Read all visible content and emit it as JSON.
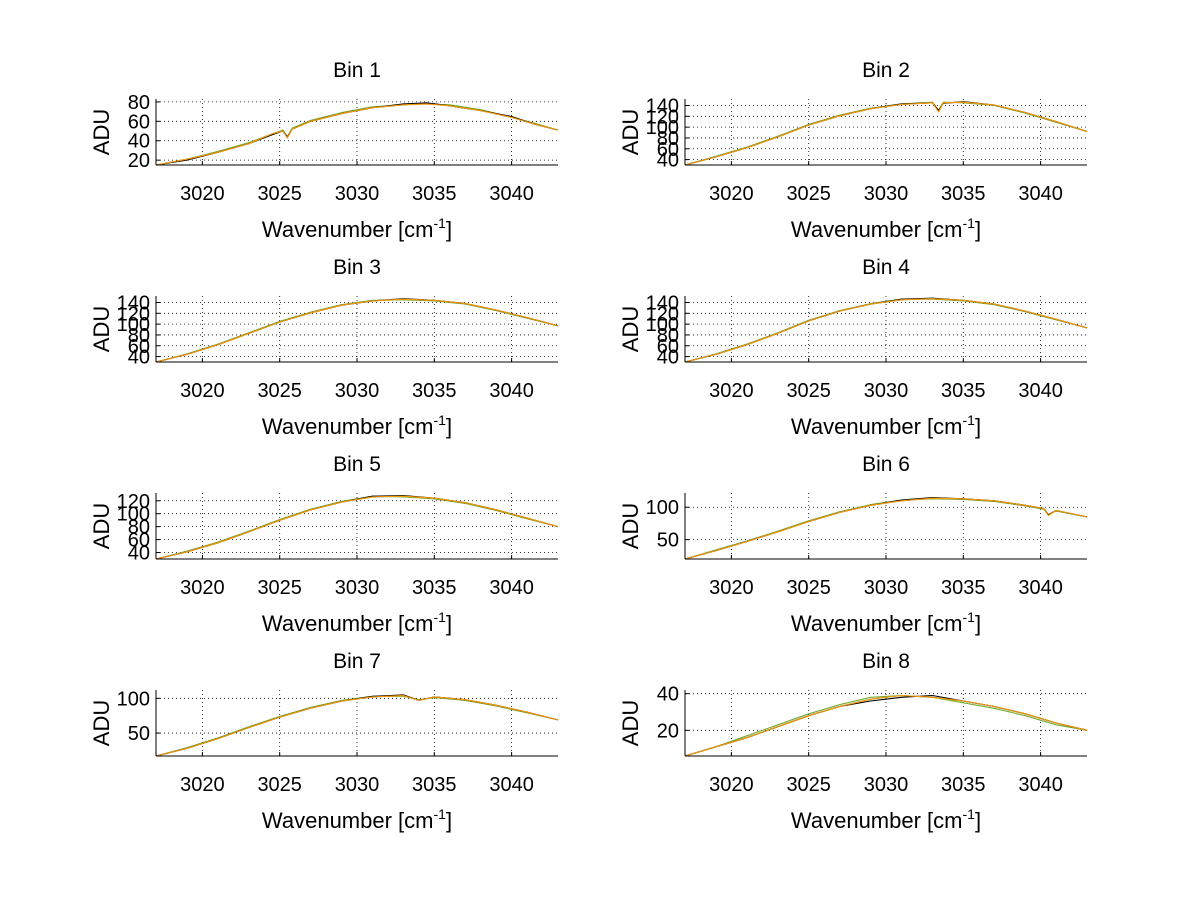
{
  "chart_data": [
    {
      "type": "line",
      "title": "Bin 1",
      "xlabel": "Wavenumber [cm",
      "xlabel_sup": "-1",
      "xlabel_end": "]",
      "ylabel": "ADU",
      "xlim": [
        3017,
        3043
      ],
      "ylim": [
        15,
        83
      ],
      "grid": true,
      "xticks": [
        3020,
        3025,
        3030,
        3035,
        3040
      ],
      "yticks": [
        20,
        40,
        60,
        80
      ],
      "x": [
        3017,
        3019,
        3021,
        3023,
        3024.5,
        3025.2,
        3025.5,
        3025.8,
        3027,
        3029,
        3031,
        3033,
        3034.5,
        3036,
        3038,
        3040,
        3041.5,
        3043
      ],
      "series": [
        {
          "color": "#0072bd",
          "values": [
            15,
            21,
            28,
            37,
            47,
            50,
            43,
            52,
            60,
            68,
            74,
            77,
            79,
            76,
            71,
            64,
            57,
            51
          ]
        },
        {
          "color": "#77ac30",
          "values": [
            15,
            21,
            29,
            38,
            47,
            51,
            44,
            53,
            61,
            69,
            75,
            77,
            78,
            77,
            72,
            64,
            58,
            51
          ]
        },
        {
          "color": "#000000",
          "values": [
            15,
            20,
            28,
            37,
            46,
            50,
            44,
            52,
            60,
            68,
            74,
            78,
            79,
            76,
            71,
            65,
            57,
            51
          ]
        },
        {
          "color": "#ff9900",
          "values": [
            15,
            21,
            28,
            37,
            47,
            50,
            43,
            52,
            60,
            68,
            74,
            77,
            78,
            76,
            71,
            64,
            57,
            51
          ]
        }
      ]
    },
    {
      "type": "line",
      "title": "Bin 2",
      "xlabel": "Wavenumber [cm",
      "xlabel_sup": "-1",
      "xlabel_end": "]",
      "ylabel": "ADU",
      "xlim": [
        3017,
        3043
      ],
      "ylim": [
        30,
        152
      ],
      "grid": true,
      "xticks": [
        3020,
        3025,
        3030,
        3035,
        3040
      ],
      "yticks": [
        40,
        60,
        80,
        100,
        120,
        140
      ],
      "x": [
        3017,
        3019,
        3021,
        3023,
        3025,
        3027,
        3029,
        3031,
        3033,
        3033.4,
        3033.7,
        3035,
        3037,
        3039,
        3041,
        3043
      ],
      "series": [
        {
          "color": "#0072bd",
          "values": [
            30,
            45,
            62,
            82,
            104,
            121,
            134,
            142,
            145,
            130,
            145,
            146,
            141,
            127,
            110,
            92
          ]
        },
        {
          "color": "#77ac30",
          "values": [
            30,
            46,
            63,
            83,
            105,
            122,
            135,
            143,
            146,
            131,
            146,
            145,
            140,
            126,
            109,
            92
          ]
        },
        {
          "color": "#000000",
          "values": [
            30,
            45,
            62,
            82,
            104,
            121,
            134,
            143,
            145,
            131,
            144,
            147,
            141,
            127,
            110,
            92
          ]
        },
        {
          "color": "#ff9900",
          "values": [
            30,
            45,
            62,
            82,
            104,
            121,
            134,
            142,
            145,
            128,
            145,
            146,
            141,
            127,
            110,
            92
          ]
        }
      ]
    },
    {
      "type": "line",
      "title": "Bin 3",
      "xlabel": "Wavenumber [cm",
      "xlabel_sup": "-1",
      "xlabel_end": "]",
      "ylabel": "ADU",
      "xlim": [
        3017,
        3043
      ],
      "ylim": [
        30,
        152
      ],
      "grid": true,
      "xticks": [
        3020,
        3025,
        3030,
        3035,
        3040
      ],
      "yticks": [
        40,
        60,
        80,
        100,
        120,
        140
      ],
      "x": [
        3017,
        3019,
        3021,
        3023,
        3025,
        3027,
        3029,
        3031,
        3033,
        3035,
        3037,
        3039,
        3041,
        3043
      ],
      "series": [
        {
          "color": "#0072bd",
          "values": [
            30,
            44,
            62,
            83,
            104,
            121,
            135,
            143,
            146,
            144,
            138,
            126,
            112,
            97
          ]
        },
        {
          "color": "#77ac30",
          "values": [
            30,
            45,
            63,
            84,
            105,
            122,
            136,
            144,
            145,
            143,
            137,
            125,
            111,
            97
          ]
        },
        {
          "color": "#000000",
          "values": [
            30,
            44,
            62,
            83,
            104,
            121,
            135,
            143,
            147,
            144,
            138,
            126,
            112,
            97
          ]
        },
        {
          "color": "#ff9900",
          "values": [
            30,
            44,
            62,
            83,
            104,
            121,
            135,
            143,
            146,
            144,
            138,
            126,
            112,
            97
          ]
        }
      ]
    },
    {
      "type": "line",
      "title": "Bin 4",
      "xlabel": "Wavenumber [cm",
      "xlabel_sup": "-1",
      "xlabel_end": "]",
      "ylabel": "ADU",
      "xlim": [
        3017,
        3043
      ],
      "ylim": [
        30,
        152
      ],
      "grid": true,
      "xticks": [
        3020,
        3025,
        3030,
        3035,
        3040
      ],
      "yticks": [
        40,
        60,
        80,
        100,
        120,
        140
      ],
      "x": [
        3017,
        3019,
        3021,
        3023,
        3025,
        3027,
        3029,
        3031,
        3033,
        3035,
        3037,
        3039,
        3041,
        3043
      ],
      "series": [
        {
          "color": "#0072bd",
          "values": [
            30,
            44,
            62,
            83,
            106,
            124,
            137,
            145,
            147,
            144,
            137,
            124,
            109,
            93
          ]
        },
        {
          "color": "#77ac30",
          "values": [
            30,
            45,
            63,
            84,
            107,
            125,
            138,
            146,
            146,
            143,
            136,
            123,
            108,
            93
          ]
        },
        {
          "color": "#000000",
          "values": [
            30,
            44,
            62,
            83,
            106,
            124,
            137,
            146,
            148,
            144,
            137,
            124,
            109,
            93
          ]
        },
        {
          "color": "#ff9900",
          "values": [
            30,
            44,
            62,
            83,
            106,
            124,
            137,
            145,
            147,
            144,
            137,
            124,
            109,
            93
          ]
        }
      ]
    },
    {
      "type": "line",
      "title": "Bin 5",
      "xlabel": "Wavenumber [cm",
      "xlabel_sup": "-1",
      "xlabel_end": "]",
      "ylabel": "ADU",
      "xlim": [
        3017,
        3043
      ],
      "ylim": [
        30,
        132
      ],
      "grid": true,
      "xticks": [
        3020,
        3025,
        3030,
        3035,
        3040
      ],
      "yticks": [
        40,
        60,
        80,
        100,
        120
      ],
      "x": [
        3017,
        3019,
        3021,
        3023,
        3025,
        3027,
        3029,
        3031,
        3033,
        3035,
        3037,
        3039,
        3041,
        3043
      ],
      "series": [
        {
          "color": "#0072bd",
          "values": [
            30,
            41,
            55,
            72,
            90,
            106,
            118,
            126,
            127,
            124,
            117,
            106,
            93,
            80
          ]
        },
        {
          "color": "#77ac30",
          "values": [
            30,
            42,
            56,
            73,
            91,
            107,
            119,
            127,
            126,
            123,
            116,
            105,
            92,
            80
          ]
        },
        {
          "color": "#000000",
          "values": [
            30,
            41,
            55,
            72,
            90,
            106,
            118,
            127,
            128,
            124,
            117,
            106,
            93,
            80
          ]
        },
        {
          "color": "#ff9900",
          "values": [
            30,
            41,
            55,
            72,
            90,
            106,
            118,
            126,
            127,
            124,
            117,
            106,
            93,
            80
          ]
        }
      ]
    },
    {
      "type": "line",
      "title": "Bin 6",
      "xlabel": "Wavenumber [cm",
      "xlabel_sup": "-1",
      "xlabel_end": "]",
      "ylabel": "ADU",
      "xlim": [
        3017,
        3043
      ],
      "ylim": [
        20,
        122
      ],
      "grid": true,
      "xticks": [
        3020,
        3025,
        3030,
        3035,
        3040
      ],
      "yticks": [
        50,
        100
      ],
      "x": [
        3017,
        3019,
        3021,
        3023,
        3025,
        3027,
        3029,
        3031,
        3033,
        3035,
        3037,
        3039,
        3040.2,
        3040.5,
        3041,
        3043
      ],
      "series": [
        {
          "color": "#0072bd",
          "values": [
            20,
            33,
            47,
            62,
            78,
            92,
            103,
            110,
            114,
            113,
            110,
            103,
            98,
            88,
            95,
            85
          ]
        },
        {
          "color": "#77ac30",
          "values": [
            20,
            34,
            48,
            63,
            79,
            93,
            104,
            111,
            113,
            112,
            109,
            102,
            97,
            89,
            94,
            85
          ]
        },
        {
          "color": "#000000",
          "values": [
            20,
            33,
            47,
            62,
            78,
            92,
            103,
            111,
            115,
            113,
            110,
            103,
            98,
            88,
            95,
            85
          ]
        },
        {
          "color": "#ff9900",
          "values": [
            20,
            33,
            47,
            62,
            78,
            92,
            103,
            110,
            114,
            113,
            110,
            103,
            98,
            87,
            95,
            85
          ]
        }
      ]
    },
    {
      "type": "line",
      "title": "Bin 7",
      "xlabel": "Wavenumber [cm",
      "xlabel_sup": "-1",
      "xlabel_end": "]",
      "ylabel": "ADU",
      "xlim": [
        3017,
        3043
      ],
      "ylim": [
        17,
        112
      ],
      "grid": true,
      "xticks": [
        3020,
        3025,
        3030,
        3035,
        3040
      ],
      "yticks": [
        50,
        100
      ],
      "x": [
        3017,
        3019,
        3021,
        3023,
        3025,
        3027,
        3029,
        3031,
        3033,
        3034,
        3035,
        3037,
        3039,
        3041,
        3043
      ],
      "series": [
        {
          "color": "#0072bd",
          "values": [
            17,
            28,
            42,
            58,
            73,
            86,
            96,
            102,
            104,
            97,
            102,
            98,
            90,
            80,
            69
          ]
        },
        {
          "color": "#77ac30",
          "values": [
            17,
            29,
            43,
            59,
            74,
            87,
            97,
            103,
            103,
            98,
            101,
            97,
            89,
            79,
            69
          ]
        },
        {
          "color": "#000000",
          "values": [
            17,
            28,
            42,
            58,
            73,
            86,
            96,
            103,
            105,
            97,
            102,
            98,
            90,
            80,
            69
          ]
        },
        {
          "color": "#ff9900",
          "values": [
            17,
            28,
            42,
            58,
            73,
            86,
            96,
            102,
            104,
            97,
            102,
            98,
            90,
            80,
            69
          ]
        }
      ]
    },
    {
      "type": "line",
      "title": "Bin 8",
      "xlabel": "Wavenumber [cm",
      "xlabel_sup": "-1",
      "xlabel_end": "]",
      "ylabel": "ADU",
      "xlim": [
        3017,
        3043
      ],
      "ylim": [
        6,
        42
      ],
      "grid": true,
      "xticks": [
        3020,
        3025,
        3030,
        3035,
        3040
      ],
      "yticks": [
        20,
        40
      ],
      "x": [
        3017,
        3019,
        3021,
        3023,
        3025,
        3027,
        3029,
        3031,
        3033,
        3035,
        3037,
        3039,
        3041,
        3043
      ],
      "series": [
        {
          "color": "#0072bd",
          "values": [
            6,
            11,
            16,
            22,
            28,
            33,
            37,
            39,
            38,
            36,
            33,
            29,
            24,
            20
          ]
        },
        {
          "color": "#77ac30",
          "values": [
            6,
            11,
            17,
            23,
            29,
            34,
            38,
            39,
            38,
            35,
            32,
            28,
            23,
            20
          ]
        },
        {
          "color": "#000000",
          "values": [
            6,
            11,
            16,
            22,
            28,
            33,
            36,
            38,
            39,
            36,
            33,
            29,
            24,
            20
          ]
        },
        {
          "color": "#ff9900",
          "values": [
            6,
            11,
            16,
            22,
            28,
            33,
            37,
            39,
            38,
            36,
            33,
            29,
            24,
            20
          ]
        }
      ]
    }
  ]
}
